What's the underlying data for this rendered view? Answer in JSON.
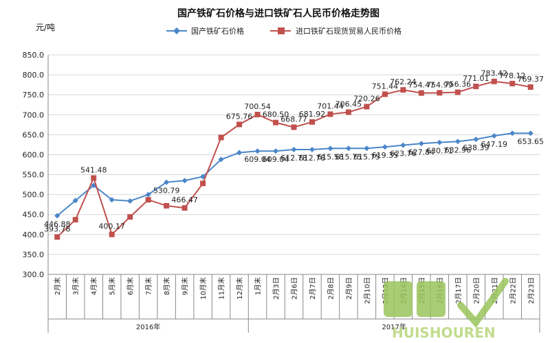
{
  "chart_data": {
    "type": "line",
    "title": "国产铁矿石价格与进口铁矿石人民币价格走势图",
    "ylabel": "元/吨",
    "ylim": [
      300,
      850
    ],
    "yticks": [
      "300.0",
      "350.0",
      "400.0",
      "450.0",
      "500.0",
      "550.0",
      "600.0",
      "650.0",
      "700.0",
      "750.0",
      "800.0",
      "850.0"
    ],
    "categories": [
      "2月末",
      "3月末",
      "4月末",
      "5月末",
      "6月末",
      "7月末",
      "8月末",
      "9月末",
      "10月末",
      "11月末",
      "12月末",
      "1月末",
      "2月3日",
      "2月6日",
      "2月7日",
      "2月8日",
      "2月9日",
      "2月10日",
      "2月13日",
      "2月14日",
      "2月15日",
      "2月16日",
      "2月17日",
      "2月20日",
      "2月21日",
      "2月22日",
      "2月23日"
    ],
    "year_groups": [
      {
        "label": "2016年",
        "start": 0,
        "end": 10
      },
      {
        "label": "2017年",
        "start": 11,
        "end": 26
      }
    ],
    "series": [
      {
        "name": "国产铁矿石价格",
        "color": "#4a86c8",
        "marker": "diamond",
        "values": [
          446.88,
          485,
          523,
          487,
          484,
          500,
          530.79,
          535,
          545,
          588,
          605,
          609.04,
          609.04,
          612.78,
          612.78,
          615.58,
          615.75,
          615.75,
          619.35,
          623.76,
          627.84,
          630.71,
          632.96,
          638.39,
          647.19,
          653.65,
          653.65
        ],
        "labels": {
          "0": "446.88",
          "6": "530.79",
          "11": "609.04",
          "12": "609.04",
          "13": "612.78",
          "14": "612.78",
          "15": "615.58",
          "16": "615.75",
          "17": "615.75",
          "18": "619.35",
          "19": "623.76",
          "20": "627.84",
          "21": "630.71",
          "22": "632.96",
          "23": "638.39",
          "24": "647.19",
          "26": "653.65"
        }
      },
      {
        "name": "进口铁矿石现货贸易人民币价格",
        "color": "#c0504d",
        "marker": "square",
        "values": [
          393.78,
          437,
          541.48,
          400.17,
          444,
          487,
          472,
          466.47,
          528,
          643,
          675.76,
          700.54,
          680.5,
          668.77,
          681.92,
          701.44,
          706.45,
          720.26,
          751.44,
          762.24,
          754.47,
          754.99,
          756.36,
          771.01,
          783.42,
          778.12,
          769.37
        ],
        "labels": {
          "0": "393.78",
          "2": "541.48",
          "3": "400.17",
          "7": "466.47",
          "10": "675.76",
          "11": "700.54",
          "12": "680.50",
          "13": "668.77",
          "14": "681.92",
          "15": "701.44",
          "16": "706.45",
          "17": "720.26",
          "18": "751.44",
          "19": "762.24",
          "20": "754.47",
          "21": "754.99",
          "22": "756.36",
          "23": "771.01",
          "24": "783.42",
          "25": "778.12",
          "26": "769.37"
        }
      }
    ],
    "grid": true,
    "legend_position": "top"
  },
  "watermark": {
    "line1": "回收",
    "line2": "HUISHOUREN"
  }
}
